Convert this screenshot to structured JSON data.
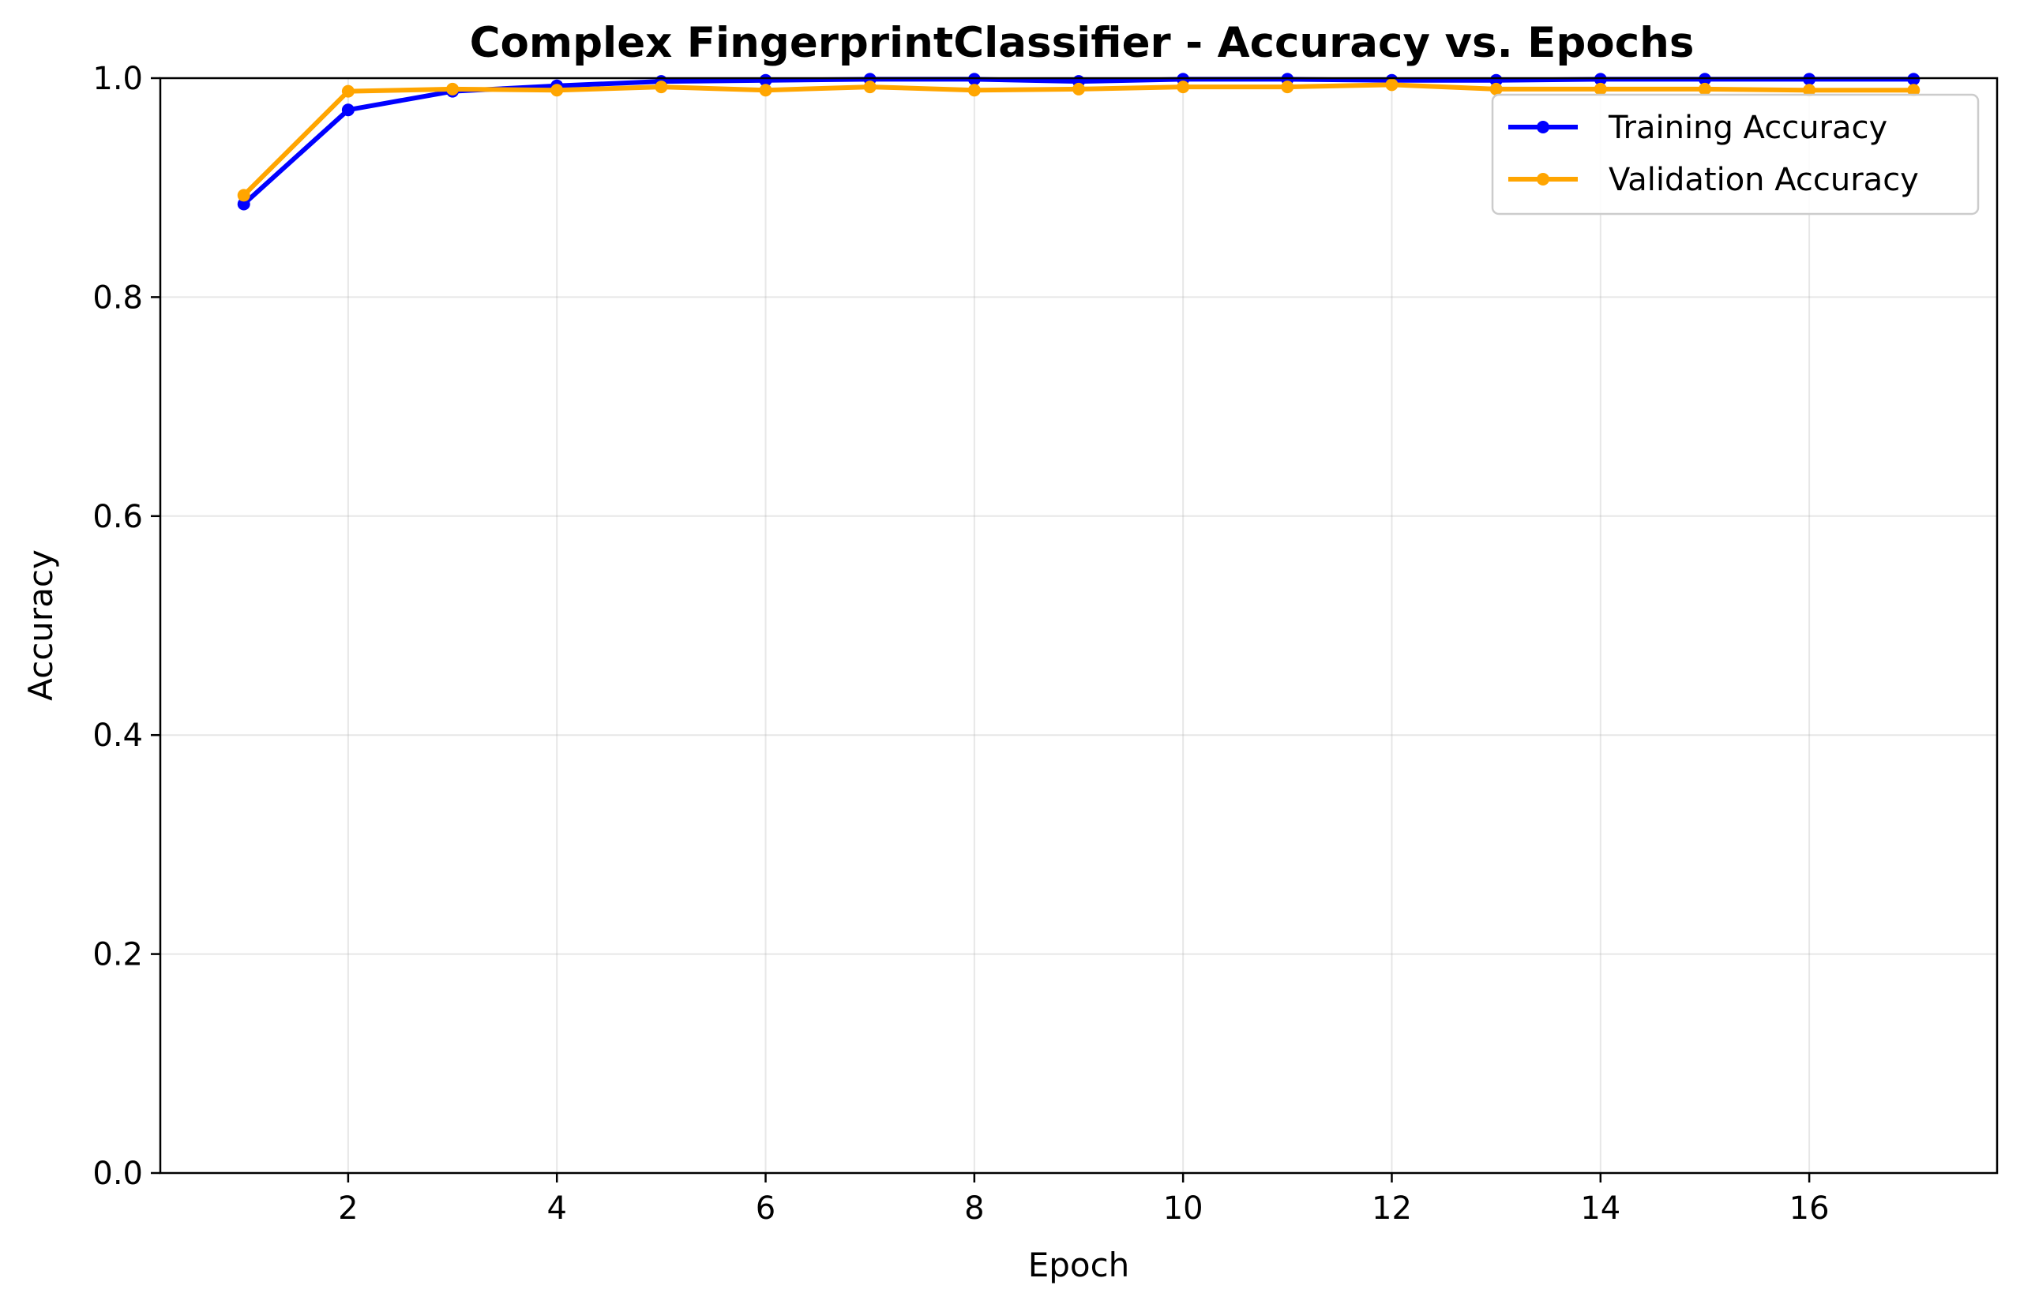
{
  "chart_data": {
    "type": "line",
    "title": "Complex FingerprintClassifier - Accuracy vs. Epochs",
    "xlabel": "Epoch",
    "ylabel": "Accuracy",
    "x": [
      1,
      2,
      3,
      4,
      5,
      6,
      7,
      8,
      9,
      10,
      11,
      12,
      13,
      14,
      15,
      16,
      17
    ],
    "xlim": [
      0.2,
      17.8
    ],
    "ylim": [
      0.0,
      1.0
    ],
    "xticks": [
      2,
      4,
      6,
      8,
      10,
      12,
      14,
      16
    ],
    "xtick_labels": [
      "2",
      "4",
      "6",
      "8",
      "10",
      "12",
      "14",
      "16"
    ],
    "yticks": [
      0.0,
      0.2,
      0.4,
      0.6,
      0.8,
      1.0
    ],
    "ytick_labels": [
      "0.0",
      "0.2",
      "0.4",
      "0.6",
      "0.8",
      "1.0"
    ],
    "grid": true,
    "legend_position": "top-right",
    "series": [
      {
        "name": "Training Accuracy",
        "color": "#0000ff",
        "values": [
          0.885,
          0.971,
          0.988,
          0.993,
          0.997,
          0.998,
          0.999,
          0.999,
          0.997,
          0.999,
          0.999,
          0.998,
          0.998,
          0.999,
          0.999,
          0.999,
          0.999
        ]
      },
      {
        "name": "Validation Accuracy",
        "color": "#ffa500",
        "values": [
          0.893,
          0.988,
          0.99,
          0.989,
          0.992,
          0.989,
          0.992,
          0.989,
          0.99,
          0.992,
          0.992,
          0.994,
          0.99,
          0.99,
          0.99,
          0.989,
          0.989
        ]
      }
    ]
  }
}
